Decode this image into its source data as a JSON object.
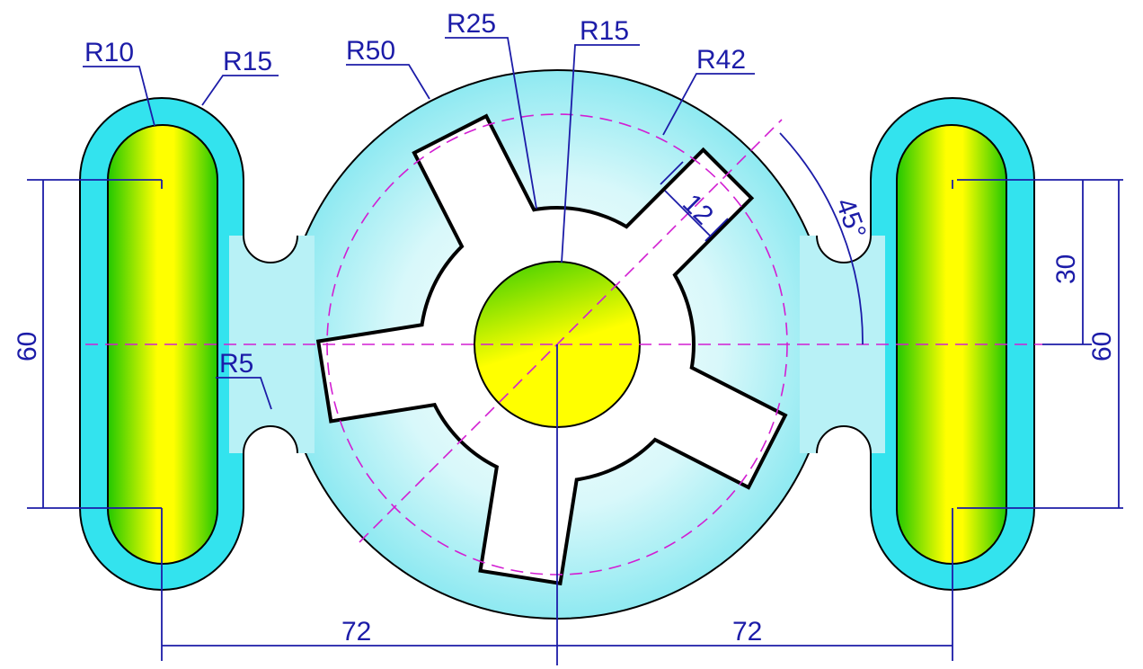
{
  "dimensions": [
    "R10",
    "R15",
    "R50",
    "R25",
    "R15",
    "R42",
    "12",
    "45°",
    "30",
    "60",
    "60",
    "R5",
    "72",
    "72"
  ]
}
